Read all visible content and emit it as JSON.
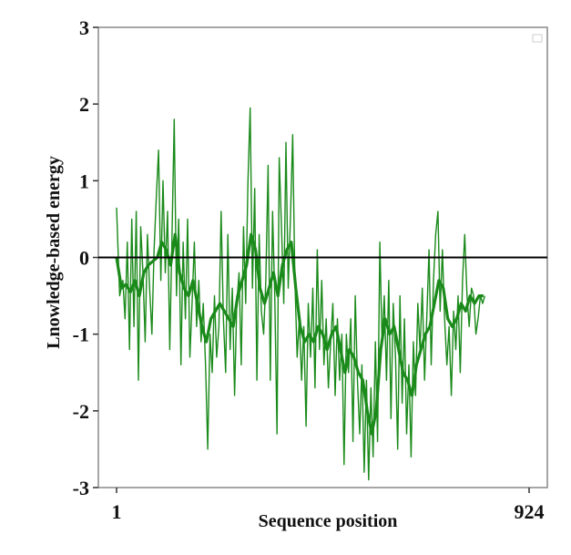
{
  "chart_data": {
    "type": "line",
    "title": "",
    "xlabel": "Sequence position",
    "ylabel": "Lnowledge-based energy",
    "xlim": [
      1,
      924
    ],
    "ylim": [
      -3,
      3
    ],
    "x_tick_labels": [
      "1",
      "924"
    ],
    "x_tick_values": [
      1,
      924
    ],
    "y_tick_values": [
      3,
      2,
      1,
      0,
      -1,
      -2,
      -3
    ],
    "y_tick_labels": [
      "3",
      "2",
      "1",
      "0",
      "-1",
      "-2",
      "-3"
    ],
    "reference_line": 0,
    "grid": false,
    "legend": "top-right (empty)",
    "colors": {
      "series": "#1a8a1a",
      "reference_line": "#000000",
      "frame": "#888888"
    },
    "series": [
      {
        "style": "thin",
        "points": [
          [
            1,
            0.65
          ],
          [
            8,
            -0.5
          ],
          [
            15,
            -0.3
          ],
          [
            20,
            -0.8
          ],
          [
            25,
            0.2
          ],
          [
            30,
            -1.2
          ],
          [
            35,
            0.5
          ],
          [
            40,
            -0.9
          ],
          [
            45,
            0.6
          ],
          [
            50,
            -1.6
          ],
          [
            55,
            0.4
          ],
          [
            60,
            -0.2
          ],
          [
            65,
            -1.1
          ],
          [
            70,
            0.3
          ],
          [
            75,
            -0.4
          ],
          [
            80,
            -1.0
          ],
          [
            85,
            0.1
          ],
          [
            90,
            0.8
          ],
          [
            95,
            1.4
          ],
          [
            100,
            -0.3
          ],
          [
            105,
            1.0
          ],
          [
            110,
            -0.2
          ],
          [
            115,
            0.6
          ],
          [
            120,
            -1.2
          ],
          [
            125,
            0.3
          ],
          [
            130,
            1.8
          ],
          [
            135,
            -0.5
          ],
          [
            140,
            0.5
          ],
          [
            145,
            -1.4
          ],
          [
            150,
            0.2
          ],
          [
            155,
            -0.8
          ],
          [
            160,
            0.5
          ],
          [
            165,
            -1.3
          ],
          [
            170,
            -0.6
          ],
          [
            175,
            0.2
          ],
          [
            180,
            -0.9
          ],
          [
            185,
            -0.3
          ],
          [
            190,
            -1.1
          ],
          [
            195,
            -0.6
          ],
          [
            200,
            -1.4
          ],
          [
            205,
            -2.5
          ],
          [
            210,
            -1.0
          ],
          [
            215,
            -1.5
          ],
          [
            220,
            -0.5
          ],
          [
            225,
            -1.3
          ],
          [
            230,
            -0.9
          ],
          [
            235,
            0.6
          ],
          [
            240,
            -0.8
          ],
          [
            245,
            -1.5
          ],
          [
            250,
            0.3
          ],
          [
            255,
            -1.2
          ],
          [
            260,
            -0.4
          ],
          [
            265,
            -1.8
          ],
          [
            270,
            -0.6
          ],
          [
            275,
            -0.2
          ],
          [
            280,
            -1.4
          ],
          [
            285,
            0.4
          ],
          [
            290,
            -0.6
          ],
          [
            295,
            1.0
          ],
          [
            300,
            1.95
          ],
          [
            305,
            -0.4
          ],
          [
            310,
            0.9
          ],
          [
            315,
            -1.6
          ],
          [
            320,
            0.3
          ],
          [
            325,
            -0.7
          ],
          [
            330,
            -1.0
          ],
          [
            335,
            -0.3
          ],
          [
            340,
            1.2
          ],
          [
            345,
            -1.6
          ],
          [
            350,
            0.6
          ],
          [
            355,
            -0.5
          ],
          [
            360,
            -2.3
          ],
          [
            365,
            1.3
          ],
          [
            370,
            0.4
          ],
          [
            375,
            -0.6
          ],
          [
            380,
            1.5
          ],
          [
            385,
            -0.4
          ],
          [
            390,
            0.5
          ],
          [
            395,
            1.6
          ],
          [
            400,
            -0.3
          ],
          [
            405,
            -1.3
          ],
          [
            410,
            -0.8
          ],
          [
            415,
            -1.6
          ],
          [
            420,
            -0.9
          ],
          [
            425,
            -2.2
          ],
          [
            430,
            -0.6
          ],
          [
            435,
            -1.3
          ],
          [
            440,
            -0.4
          ],
          [
            445,
            -1.7
          ],
          [
            450,
            0.1
          ],
          [
            455,
            -1.2
          ],
          [
            460,
            -0.3
          ],
          [
            465,
            -1.4
          ],
          [
            470,
            -0.8
          ],
          [
            475,
            -1.7
          ],
          [
            480,
            -1.1
          ],
          [
            485,
            -0.6
          ],
          [
            490,
            -1.8
          ],
          [
            495,
            -0.8
          ],
          [
            500,
            -1.6
          ],
          [
            505,
            -1.0
          ],
          [
            510,
            -2.7
          ],
          [
            515,
            -1.0
          ],
          [
            520,
            -1.5
          ],
          [
            525,
            -0.8
          ],
          [
            530,
            -2.4
          ],
          [
            535,
            -0.5
          ],
          [
            540,
            -1.6
          ],
          [
            545,
            -2.3
          ],
          [
            550,
            -1.4
          ],
          [
            555,
            -2.8
          ],
          [
            560,
            -1.6
          ],
          [
            565,
            -2.9
          ],
          [
            570,
            -1.7
          ],
          [
            575,
            -2.6
          ],
          [
            580,
            -1.1
          ],
          [
            585,
            -2.4
          ],
          [
            590,
            0.2
          ],
          [
            595,
            -1.1
          ],
          [
            600,
            -0.5
          ],
          [
            605,
            -1.6
          ],
          [
            610,
            -0.3
          ],
          [
            615,
            -2.1
          ],
          [
            620,
            -0.6
          ],
          [
            625,
            -1.3
          ],
          [
            630,
            -2.5
          ],
          [
            635,
            -0.5
          ],
          [
            640,
            -1.9
          ],
          [
            645,
            -0.8
          ],
          [
            650,
            -2.3
          ],
          [
            655,
            -1.4
          ],
          [
            660,
            -2.6
          ],
          [
            665,
            -1.1
          ],
          [
            670,
            -1.8
          ],
          [
            675,
            -0.6
          ],
          [
            680,
            -1.2
          ],
          [
            685,
            -0.4
          ],
          [
            690,
            -1.6
          ],
          [
            695,
            -0.8
          ],
          [
            700,
            0.1
          ],
          [
            705,
            -1.4
          ],
          [
            710,
            -0.3
          ],
          [
            715,
            0.3
          ],
          [
            720,
            0.6
          ],
          [
            725,
            -0.7
          ],
          [
            730,
            0.1
          ],
          [
            735,
            -0.8
          ],
          [
            740,
            -1.4
          ],
          [
            745,
            -0.9
          ],
          [
            750,
            -1.8
          ],
          [
            755,
            -0.7
          ],
          [
            760,
            -1.2
          ],
          [
            765,
            -0.5
          ],
          [
            770,
            -1.5
          ],
          [
            775,
            -0.3
          ],
          [
            780,
            0.3
          ],
          [
            785,
            -0.5
          ],
          [
            790,
            -0.9
          ],
          [
            795,
            -0.4
          ],
          [
            800,
            -0.5
          ],
          [
            805,
            -1.0
          ],
          [
            810,
            -0.8
          ],
          [
            815,
            -0.5
          ],
          [
            820,
            -0.6
          ],
          [
            825,
            -0.5
          ]
        ]
      },
      {
        "style": "thick",
        "points": [
          [
            1,
            0.0
          ],
          [
            12,
            -0.4
          ],
          [
            22,
            -0.35
          ],
          [
            32,
            -0.45
          ],
          [
            42,
            -0.3
          ],
          [
            52,
            -0.5
          ],
          [
            62,
            -0.2
          ],
          [
            72,
            -0.1
          ],
          [
            82,
            -0.05
          ],
          [
            92,
            0.0
          ],
          [
            102,
            0.2
          ],
          [
            112,
            0.1
          ],
          [
            122,
            -0.1
          ],
          [
            132,
            0.3
          ],
          [
            142,
            -0.2
          ],
          [
            152,
            -0.4
          ],
          [
            162,
            -0.5
          ],
          [
            172,
            -0.3
          ],
          [
            182,
            -0.6
          ],
          [
            192,
            -0.9
          ],
          [
            202,
            -1.1
          ],
          [
            212,
            -0.8
          ],
          [
            222,
            -0.7
          ],
          [
            232,
            -0.6
          ],
          [
            242,
            -0.7
          ],
          [
            252,
            -0.8
          ],
          [
            262,
            -0.9
          ],
          [
            272,
            -0.5
          ],
          [
            282,
            -0.3
          ],
          [
            292,
            -0.1
          ],
          [
            302,
            0.3
          ],
          [
            312,
            0.1
          ],
          [
            322,
            -0.4
          ],
          [
            332,
            -0.6
          ],
          [
            342,
            -0.4
          ],
          [
            352,
            -0.2
          ],
          [
            362,
            -0.5
          ],
          [
            372,
            -0.1
          ],
          [
            382,
            0.1
          ],
          [
            392,
            0.2
          ],
          [
            402,
            -0.4
          ],
          [
            412,
            -0.9
          ],
          [
            422,
            -1.1
          ],
          [
            432,
            -1.0
          ],
          [
            442,
            -1.1
          ],
          [
            452,
            -0.9
          ],
          [
            462,
            -1.0
          ],
          [
            472,
            -1.2
          ],
          [
            482,
            -1.0
          ],
          [
            492,
            -0.9
          ],
          [
            502,
            -1.2
          ],
          [
            512,
            -1.5
          ],
          [
            522,
            -1.2
          ],
          [
            532,
            -1.3
          ],
          [
            542,
            -1.5
          ],
          [
            552,
            -1.6
          ],
          [
            562,
            -2.0
          ],
          [
            572,
            -2.3
          ],
          [
            582,
            -2.0
          ],
          [
            592,
            -1.2
          ],
          [
            602,
            -0.8
          ],
          [
            612,
            -1.0
          ],
          [
            622,
            -0.9
          ],
          [
            632,
            -1.2
          ],
          [
            642,
            -1.5
          ],
          [
            652,
            -1.6
          ],
          [
            662,
            -1.8
          ],
          [
            672,
            -1.4
          ],
          [
            682,
            -1.2
          ],
          [
            692,
            -1.0
          ],
          [
            702,
            -0.9
          ],
          [
            712,
            -0.6
          ],
          [
            722,
            -0.3
          ],
          [
            732,
            -0.4
          ],
          [
            742,
            -0.8
          ],
          [
            752,
            -0.9
          ],
          [
            762,
            -0.8
          ],
          [
            772,
            -0.6
          ],
          [
            782,
            -0.7
          ],
          [
            792,
            -0.5
          ],
          [
            802,
            -0.6
          ],
          [
            812,
            -0.5
          ],
          [
            822,
            -0.5
          ]
        ]
      }
    ]
  }
}
